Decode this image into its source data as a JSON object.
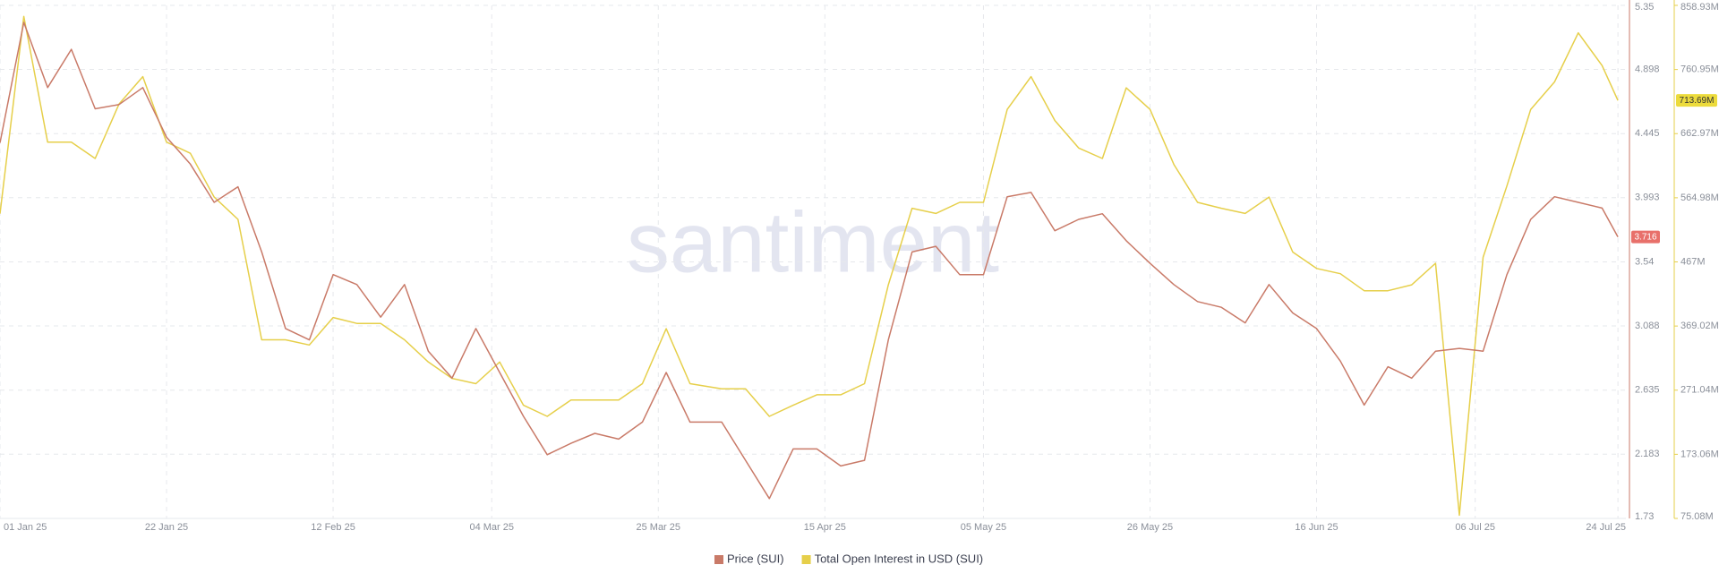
{
  "chart_data": {
    "type": "line",
    "watermark": "santiment",
    "x": [
      "2025-01-01",
      "2025-01-04",
      "2025-01-07",
      "2025-01-10",
      "2025-01-13",
      "2025-01-16",
      "2025-01-19",
      "2025-01-22",
      "2025-01-25",
      "2025-01-28",
      "2025-01-31",
      "2025-02-03",
      "2025-02-06",
      "2025-02-09",
      "2025-02-12",
      "2025-02-15",
      "2025-02-18",
      "2025-02-21",
      "2025-02-24",
      "2025-02-27",
      "2025-03-02",
      "2025-03-05",
      "2025-03-08",
      "2025-03-11",
      "2025-03-14",
      "2025-03-17",
      "2025-03-20",
      "2025-03-23",
      "2025-03-26",
      "2025-03-29",
      "2025-04-02",
      "2025-04-05",
      "2025-04-08",
      "2025-04-11",
      "2025-04-14",
      "2025-04-17",
      "2025-04-20",
      "2025-04-23",
      "2025-04-26",
      "2025-04-29",
      "2025-05-02",
      "2025-05-05",
      "2025-05-08",
      "2025-05-11",
      "2025-05-14",
      "2025-05-17",
      "2025-05-20",
      "2025-05-23",
      "2025-05-26",
      "2025-05-29",
      "2025-06-01",
      "2025-06-04",
      "2025-06-07",
      "2025-06-10",
      "2025-06-13",
      "2025-06-16",
      "2025-06-19",
      "2025-06-22",
      "2025-06-25",
      "2025-06-28",
      "2025-07-01",
      "2025-07-04",
      "2025-07-07",
      "2025-07-10",
      "2025-07-13",
      "2025-07-16",
      "2025-07-19",
      "2025-07-22",
      "2025-07-24"
    ],
    "xlim": [
      "2025-01-01",
      "2025-07-25"
    ],
    "xticks": [
      {
        "value": "2025-01-01",
        "label": "01 Jan 25"
      },
      {
        "value": "2025-01-22",
        "label": "22 Jan 25"
      },
      {
        "value": "2025-02-12",
        "label": "12 Feb 25"
      },
      {
        "value": "2025-03-04",
        "label": "04 Mar 25"
      },
      {
        "value": "2025-03-25",
        "label": "25 Mar 25"
      },
      {
        "value": "2025-04-15",
        "label": "15 Apr 25"
      },
      {
        "value": "2025-05-05",
        "label": "05 May 25"
      },
      {
        "value": "2025-05-26",
        "label": "26 May 25"
      },
      {
        "value": "2025-06-16",
        "label": "16 Jun 25"
      },
      {
        "value": "2025-07-06",
        "label": "06 Jul 25"
      },
      {
        "value": "2025-07-24",
        "label": "24 Jul 25"
      }
    ],
    "ylim": [
      1.73,
      5.35
    ],
    "yticks": [
      1.73,
      2.183,
      2.635,
      3.088,
      3.54,
      3.993,
      4.445,
      4.898,
      5.35
    ],
    "y2lim": [
      75.08,
      858.93
    ],
    "y2ticks": [
      {
        "value": 75.08,
        "label": "75.08M"
      },
      {
        "value": 173.06,
        "label": "173.06M"
      },
      {
        "value": 271.04,
        "label": "271.04M"
      },
      {
        "value": 369.02,
        "label": "369.02M"
      },
      {
        "value": 467,
        "label": "467M"
      },
      {
        "value": 564.98,
        "label": "564.98M"
      },
      {
        "value": 662.97,
        "label": "662.97M"
      },
      {
        "value": 760.95,
        "label": "760.95M"
      },
      {
        "value": 858.93,
        "label": "858.93M"
      }
    ],
    "grid": true,
    "series": [
      {
        "name": "Price (SUI)",
        "color": "#c97a68",
        "values": [
          4.38,
          5.23,
          4.77,
          5.04,
          4.62,
          4.65,
          4.77,
          4.42,
          4.23,
          3.96,
          4.07,
          3.61,
          3.07,
          2.99,
          3.45,
          3.38,
          3.15,
          3.38,
          2.91,
          2.72,
          3.07,
          2.76,
          2.45,
          2.18,
          2.26,
          2.33,
          2.29,
          2.41,
          2.76,
          2.41,
          2.41,
          2.14,
          1.87,
          2.22,
          2.22,
          2.1,
          2.14,
          2.99,
          3.61,
          3.65,
          3.45,
          3.45,
          4.0,
          4.03,
          3.76,
          3.84,
          3.88,
          3.69,
          3.53,
          3.38,
          3.26,
          3.22,
          3.11,
          3.38,
          3.18,
          3.07,
          2.84,
          2.53,
          2.8,
          2.72,
          2.91,
          2.93,
          2.91,
          3.45,
          3.84,
          4.0,
          3.96,
          3.92,
          3.716
        ]
      },
      {
        "name": "Total Open Interest in USD (SUI)",
        "color": "#e6cf4a",
        "axis": "y2",
        "last_label": "713.69M",
        "values": [
          540.7,
          842,
          650,
          650,
          625,
          708,
          750,
          650,
          633,
          566,
          532,
          348,
          348,
          340,
          382,
          373,
          373,
          348,
          314,
          289,
          281,
          314,
          248,
          231,
          256,
          256,
          256,
          281,
          365,
          281,
          273,
          273,
          231,
          248,
          264,
          264,
          281,
          432,
          549,
          541,
          558,
          558,
          700,
          750,
          683,
          641,
          625,
          733,
          700,
          616,
          558,
          549,
          541,
          566,
          482,
          457,
          449,
          423,
          423,
          432,
          465,
          80,
          474,
          583,
          700,
          742,
          817,
          767,
          713.69
        ]
      }
    ]
  }
}
